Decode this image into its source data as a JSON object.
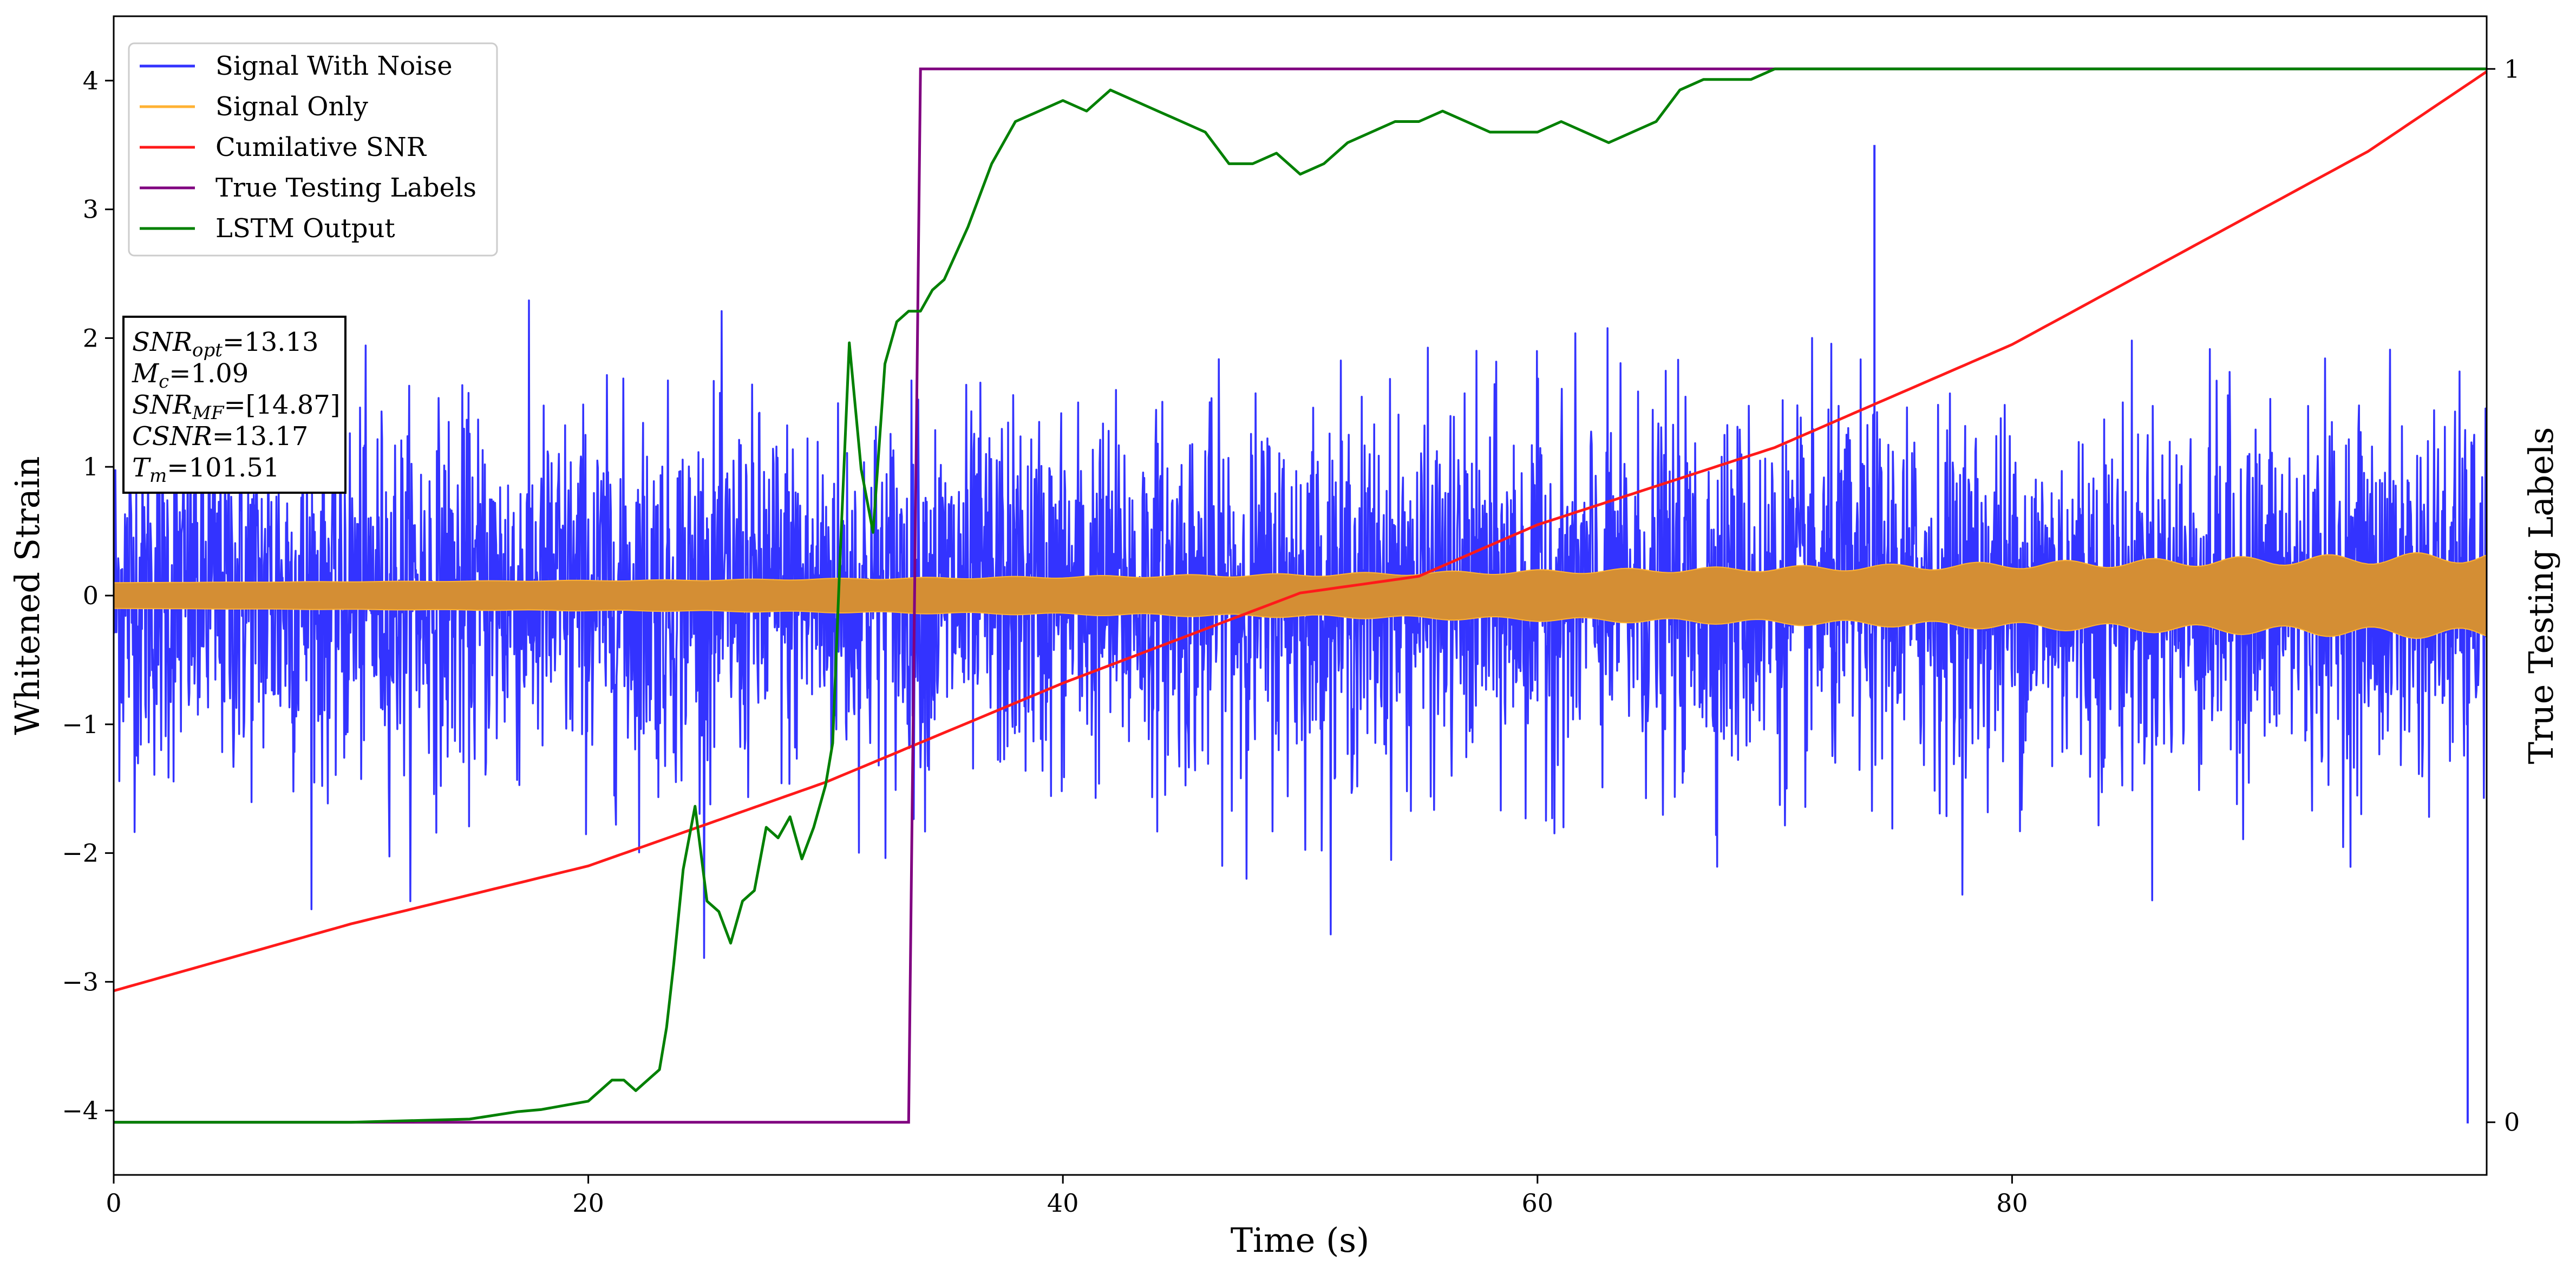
{
  "chart_data": {
    "type": "line",
    "title": "",
    "xlabel": "Time (s)",
    "ylabel": "Whitened Strain",
    "ylabel_right": "True Testing Labels",
    "xlim": [
      0,
      100
    ],
    "ylim": [
      -4.5,
      4.5
    ],
    "ylim_right": [
      -0.05,
      1.05
    ],
    "x_ticks": [
      0,
      20,
      40,
      60,
      80
    ],
    "y_ticks": [
      -4,
      -3,
      -2,
      -1,
      0,
      1,
      2,
      3,
      4
    ],
    "y_ticks_right": [
      0,
      1
    ],
    "grid": false,
    "legend_position": "top-left",
    "colors": {
      "signal_with_noise": "#3333ff",
      "signal_only": "#ffb233",
      "signal_only_fill": "#d48e34",
      "cumulative_snr": "#ff1a1a",
      "true_labels": "#800080",
      "lstm_output": "#008000"
    },
    "legend": [
      {
        "key": "signal_with_noise",
        "label": "Signal With Noise"
      },
      {
        "key": "signal_only",
        "label": "Signal Only"
      },
      {
        "key": "cumulative_snr",
        "label": "Cumilative SNR"
      },
      {
        "key": "true_labels",
        "label": "True Testing Labels"
      },
      {
        "key": "lstm_output",
        "label": "LSTM Output"
      }
    ],
    "annotation": [
      {
        "name": "SNR",
        "sub": "opt",
        "value": "=13.13"
      },
      {
        "name": "M",
        "sub": "c",
        "value": "=1.09"
      },
      {
        "name": "SNR",
        "sub": "MF",
        "value": "=[14.87]"
      },
      {
        "name": "CSNR",
        "sub": "",
        "value": "=13.17"
      },
      {
        "name": "T",
        "sub": "m",
        "value": "=101.51"
      }
    ],
    "series": [
      {
        "key": "cumulative_snr",
        "axis": "left",
        "x": [
          0,
          10,
          20,
          30,
          40,
          50,
          55,
          60,
          70,
          80,
          90,
          95,
          100
        ],
        "y": [
          -3.07,
          -2.55,
          -2.1,
          -1.45,
          -0.68,
          0.02,
          0.15,
          0.55,
          1.15,
          1.95,
          2.95,
          3.45,
          4.07
        ]
      },
      {
        "key": "true_labels",
        "axis": "right",
        "x": [
          0,
          33.5,
          34.0,
          100
        ],
        "y": [
          0,
          0,
          1,
          1
        ]
      },
      {
        "key": "lstm_output",
        "axis": "right",
        "x": [
          0,
          10,
          15,
          17,
          18,
          19,
          20,
          21,
          21.5,
          22,
          22.5,
          23,
          23.3,
          23.6,
          24,
          24.5,
          25,
          25.5,
          26,
          26.5,
          27,
          27.5,
          28,
          28.5,
          29,
          29.5,
          30,
          30.3,
          30.6,
          31,
          31.5,
          32,
          32.5,
          33,
          33.5,
          34,
          34.5,
          35,
          36,
          37,
          38,
          39,
          40,
          41,
          42,
          43,
          44,
          45,
          46,
          47,
          48,
          49,
          50,
          51,
          52,
          53,
          54,
          55,
          56,
          57,
          58,
          59,
          60,
          61,
          62,
          63,
          64,
          65,
          66,
          67,
          68,
          69,
          70,
          72,
          75,
          78,
          80,
          85,
          90,
          95,
          100
        ],
        "y": [
          0,
          0,
          0.003,
          0.01,
          0.012,
          0.016,
          0.02,
          0.04,
          0.04,
          0.03,
          0.04,
          0.05,
          0.09,
          0.15,
          0.24,
          0.3,
          0.21,
          0.2,
          0.17,
          0.21,
          0.22,
          0.28,
          0.27,
          0.29,
          0.25,
          0.28,
          0.32,
          0.36,
          0.53,
          0.74,
          0.62,
          0.56,
          0.72,
          0.76,
          0.77,
          0.77,
          0.79,
          0.8,
          0.85,
          0.91,
          0.95,
          0.96,
          0.97,
          0.96,
          0.98,
          0.97,
          0.96,
          0.95,
          0.94,
          0.91,
          0.91,
          0.92,
          0.9,
          0.91,
          0.93,
          0.94,
          0.95,
          0.95,
          0.96,
          0.95,
          0.94,
          0.94,
          0.94,
          0.95,
          0.94,
          0.93,
          0.94,
          0.95,
          0.98,
          0.99,
          0.99,
          0.99,
          1.0,
          1.0,
          1.0,
          1.0,
          1.0,
          1.0,
          1.0,
          1.0,
          1.0
        ]
      },
      {
        "key": "signal_only",
        "axis": "left",
        "x": [
          0,
          25,
          50,
          75,
          100
        ],
        "amplitude": [
          0.1,
          0.12,
          0.16,
          0.22,
          0.3
        ]
      },
      {
        "key": "signal_with_noise",
        "axis": "left",
        "x_range": [
          0,
          100
        ],
        "noise_std": 0.7,
        "peak_extremes": [
          3.5,
          -4.1
        ]
      }
    ]
  }
}
